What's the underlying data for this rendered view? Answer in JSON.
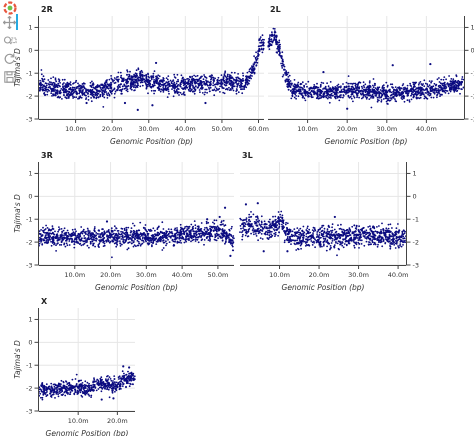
{
  "toolbar": {
    "items": [
      {
        "name": "bokeh-logo-icon"
      },
      {
        "name": "pan-tool-icon",
        "active": true
      },
      {
        "name": "box-zoom-tool-icon"
      },
      {
        "name": "reset-tool-icon"
      },
      {
        "name": "save-tool-icon"
      }
    ]
  },
  "colors": {
    "points": "#0b0b80",
    "grid": "#e6e6e6",
    "axis": "#444444",
    "text": "#333333"
  },
  "chart_data": [
    {
      "type": "scatter",
      "title": "2R",
      "xlabel": "Genomic Position (bp)",
      "ylabel": "Tajima's D",
      "xlim": [
        0,
        61.5
      ],
      "ylim": [
        -3,
        1.5
      ],
      "xticks": [
        10,
        20,
        30,
        40,
        50,
        60
      ],
      "xticklabels": [
        "10.0m",
        "20.0m",
        "30.0m",
        "40.0m",
        "50.0m",
        "60.0m"
      ],
      "yticks": [
        -3,
        -2,
        -1,
        0,
        1
      ],
      "yticklabels": [
        "-3",
        "-2",
        "-1",
        "0",
        "1"
      ],
      "grid": true,
      "trend": [
        [
          0,
          -1.6
        ],
        [
          5,
          -1.65
        ],
        [
          10,
          -1.75
        ],
        [
          15,
          -1.8
        ],
        [
          20,
          -1.6
        ],
        [
          25,
          -1.35
        ],
        [
          28,
          -1.2
        ],
        [
          32,
          -1.45
        ],
        [
          36,
          -1.6
        ],
        [
          40,
          -1.55
        ],
        [
          45,
          -1.45
        ],
        [
          50,
          -1.4
        ],
        [
          55,
          -1.45
        ],
        [
          57,
          -1.3
        ],
        [
          58.5,
          -0.8
        ],
        [
          59.5,
          -0.3
        ],
        [
          60.5,
          0.3
        ],
        [
          61.3,
          0.4
        ]
      ],
      "spread": 0.28,
      "outliers": [
        [
          23.5,
          -2.3
        ],
        [
          27,
          -2.6
        ],
        [
          32,
          -0.55
        ],
        [
          45.5,
          -2.3
        ],
        [
          31,
          -2.4
        ],
        [
          13,
          -2.3
        ]
      ]
    },
    {
      "type": "scatter",
      "title": "2L",
      "xlabel": "Genomic Position (bp)",
      "ylabel": "Tajima's D",
      "xlim": [
        0,
        49.5
      ],
      "ylim": [
        -3,
        1.5
      ],
      "xticks": [
        10,
        20,
        30,
        40
      ],
      "xticklabels": [
        "10.0m",
        "20.0m",
        "30.0m",
        "40.0m"
      ],
      "yticks": [
        -3,
        -2,
        -1,
        0,
        1
      ],
      "yticklabels": [
        "-3",
        "-2",
        "-1",
        "0",
        "1"
      ],
      "grid": true,
      "trend": [
        [
          0.2,
          0.3
        ],
        [
          1.5,
          0.6
        ],
        [
          2.5,
          0.3
        ],
        [
          3.5,
          -0.4
        ],
        [
          4.5,
          -1.2
        ],
        [
          6,
          -1.7
        ],
        [
          10,
          -1.8
        ],
        [
          15,
          -1.85
        ],
        [
          20,
          -1.75
        ],
        [
          25,
          -1.8
        ],
        [
          30,
          -1.9
        ],
        [
          35,
          -1.85
        ],
        [
          40,
          -1.75
        ],
        [
          45,
          -1.6
        ],
        [
          49.5,
          -1.45
        ]
      ],
      "spread": 0.25,
      "outliers": [
        [
          31.5,
          -0.65
        ],
        [
          41,
          -0.6
        ],
        [
          14,
          -0.95
        ],
        [
          20,
          -2.55
        ]
      ]
    },
    {
      "type": "scatter",
      "title": "3R",
      "xlabel": "Genomic Position (bp)",
      "ylabel": "Tajima's D",
      "xlim": [
        0,
        54.5
      ],
      "ylim": [
        -3,
        1.5
      ],
      "xticks": [
        10,
        20,
        30,
        40,
        50
      ],
      "xticklabels": [
        "10.0m",
        "20.0m",
        "30.0m",
        "40.0m",
        "50.0m"
      ],
      "yticks": [
        -3,
        -2,
        -1,
        0,
        1
      ],
      "yticklabels": [
        "-3",
        "-2",
        "-1",
        "0",
        "1"
      ],
      "grid": true,
      "trend": [
        [
          0,
          -1.75
        ],
        [
          10,
          -1.8
        ],
        [
          20,
          -1.75
        ],
        [
          30,
          -1.8
        ],
        [
          40,
          -1.7
        ],
        [
          47,
          -1.6
        ],
        [
          51,
          -1.5
        ],
        [
          53,
          -1.8
        ],
        [
          54.5,
          -2.1
        ]
      ],
      "spread": 0.28,
      "outliers": [
        [
          52,
          -0.5
        ],
        [
          50.5,
          -0.9
        ],
        [
          47,
          -1.0
        ],
        [
          19,
          -1.1
        ],
        [
          53.5,
          -2.6
        ]
      ]
    },
    {
      "type": "scatter",
      "title": "3L",
      "xlabel": "Genomic Position (bp)",
      "ylabel": "Tajima's D",
      "xlim": [
        0,
        42
      ],
      "ylim": [
        -3,
        1.5
      ],
      "xticks": [
        10,
        20,
        30,
        40
      ],
      "xticklabels": [
        "10.0m",
        "20.0m",
        "30.0m",
        "40.0m"
      ],
      "yticks": [
        -3,
        -2,
        -1,
        0,
        1
      ],
      "yticklabels": [
        "-3",
        "-2",
        "-1",
        "0",
        "1"
      ],
      "grid": true,
      "trend": [
        [
          1,
          -1.4
        ],
        [
          3,
          -1.2
        ],
        [
          5,
          -1.3
        ],
        [
          7,
          -1.5
        ],
        [
          9,
          -1.3
        ],
        [
          10.5,
          -1.1
        ],
        [
          12,
          -1.7
        ],
        [
          15,
          -1.8
        ],
        [
          20,
          -1.75
        ],
        [
          25,
          -1.8
        ],
        [
          30,
          -1.75
        ],
        [
          35,
          -1.7
        ],
        [
          40,
          -1.8
        ],
        [
          42,
          -1.85
        ]
      ],
      "spread": 0.32,
      "outliers": [
        [
          1.5,
          -0.35
        ],
        [
          4.5,
          -0.3
        ],
        [
          24,
          -0.9
        ],
        [
          6,
          -2.4
        ],
        [
          12,
          -2.4
        ]
      ]
    },
    {
      "type": "scatter",
      "title": "X",
      "xlabel": "Genomic Position (bp)",
      "ylabel": "Tajima's D",
      "xlim": [
        0,
        24.5
      ],
      "ylim": [
        -3,
        1.5
      ],
      "xticks": [
        10,
        20
      ],
      "xticklabels": [
        "10.0m",
        "20.0m"
      ],
      "yticks": [
        -3,
        -2,
        -1,
        0,
        1
      ],
      "yticklabels": [
        "-3",
        "-2",
        "-1",
        "0",
        "1"
      ],
      "grid": true,
      "trend": [
        [
          0,
          -2.1
        ],
        [
          5,
          -2.05
        ],
        [
          10,
          -2.0
        ],
        [
          13,
          -2.0
        ],
        [
          15,
          -1.8
        ],
        [
          17,
          -1.85
        ],
        [
          20,
          -1.9
        ],
        [
          22,
          -1.6
        ],
        [
          24.5,
          -1.5
        ]
      ],
      "spread": 0.22,
      "outliers": [
        [
          21.5,
          -1.05
        ],
        [
          23,
          -1.1
        ],
        [
          16,
          -2.5
        ],
        [
          19,
          -2.45
        ]
      ]
    }
  ]
}
